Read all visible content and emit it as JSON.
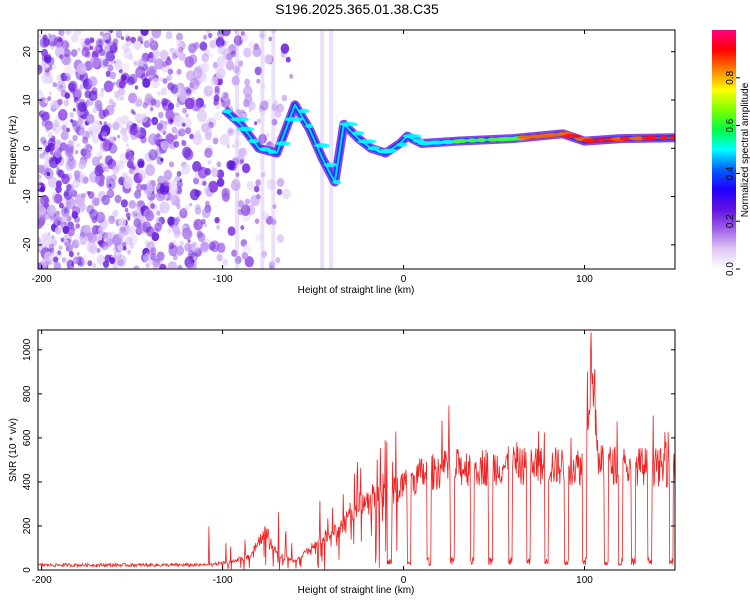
{
  "chart_data": [
    {
      "type": "heatmap",
      "title": "S196.2025.365.01.38.C35",
      "xlabel": "Height of straight line (km)",
      "ylabel": "Frequency (Hz)",
      "xlim": [
        -202,
        150
      ],
      "ylim": [
        -25,
        24.5
      ],
      "xticks": [
        -200,
        -100,
        0,
        100
      ],
      "yticks": [
        -20,
        -10,
        0,
        10,
        20
      ],
      "colorbar": {
        "label": "Normalized spectral amplitude",
        "range": [
          0,
          1
        ],
        "ticks": [
          "0.0",
          "0.2",
          "0.4",
          "0.6",
          "0.8"
        ],
        "tick_values": [
          0.0,
          0.2,
          0.4,
          0.6,
          0.8
        ],
        "colors": [
          "#ffffff",
          "#e0c8f8",
          "#a060e8",
          "#6010e0",
          "#2000ff",
          "#0060ff",
          "#00ffff",
          "#00ff40",
          "#80ff00",
          "#ffff00",
          "#ff8000",
          "#ff0000",
          "#ff0080"
        ]
      },
      "ridge": [
        {
          "x": -99,
          "y": 8
        },
        {
          "x": -90,
          "y": 5
        },
        {
          "x": -80,
          "y": 0
        },
        {
          "x": -70,
          "y": -1
        },
        {
          "x": -60,
          "y": 9
        },
        {
          "x": -52,
          "y": 4
        },
        {
          "x": -45,
          "y": -2
        },
        {
          "x": -38,
          "y": -7
        },
        {
          "x": -33,
          "y": 5
        },
        {
          "x": -25,
          "y": 2
        },
        {
          "x": -18,
          "y": 0
        },
        {
          "x": -10,
          "y": -1
        },
        {
          "x": -2,
          "y": 1
        },
        {
          "x": 2,
          "y": 2.5
        },
        {
          "x": 10,
          "y": 1
        },
        {
          "x": 30,
          "y": 1.5
        },
        {
          "x": 60,
          "y": 2
        },
        {
          "x": 88,
          "y": 3
        },
        {
          "x": 100,
          "y": 1.5
        },
        {
          "x": 120,
          "y": 2
        },
        {
          "x": 150,
          "y": 2.2
        }
      ]
    },
    {
      "type": "line",
      "xlabel": "Height of straight line (km)",
      "ylabel": "SNR (10 * v/v)",
      "xlim": [
        -202,
        150
      ],
      "ylim": [
        0,
        1090
      ],
      "xticks": [
        -200,
        -100,
        0,
        100
      ],
      "yticks": [
        0,
        200,
        400,
        600,
        800,
        1000
      ],
      "series": [
        {
          "name": "SNR",
          "color": "#ee2222",
          "envelope": [
            {
              "x": -202,
              "y": 25
            },
            {
              "x": -110,
              "y": 25
            },
            {
              "x": -95,
              "y": 40
            },
            {
              "x": -85,
              "y": 70
            },
            {
              "x": -76,
              "y": 190
            },
            {
              "x": -70,
              "y": 80
            },
            {
              "x": -60,
              "y": 40
            },
            {
              "x": -43,
              "y": 170
            },
            {
              "x": -35,
              "y": 200
            },
            {
              "x": -28,
              "y": 300
            },
            {
              "x": -20,
              "y": 350
            },
            {
              "x": -10,
              "y": 380
            },
            {
              "x": 0,
              "y": 420
            },
            {
              "x": 10,
              "y": 470
            },
            {
              "x": 25,
              "y": 500
            },
            {
              "x": 50,
              "y": 510
            },
            {
              "x": 80,
              "y": 510
            },
            {
              "x": 100,
              "y": 510
            },
            {
              "x": 104,
              "y": 1080
            },
            {
              "x": 108,
              "y": 520
            },
            {
              "x": 150,
              "y": 500
            }
          ],
          "dropouts_x": [
            -8,
            3,
            14,
            27,
            38,
            48,
            59,
            69,
            79,
            90,
            100,
            112,
            120,
            127,
            136,
            148
          ],
          "dropout_level": 40
        }
      ]
    }
  ]
}
